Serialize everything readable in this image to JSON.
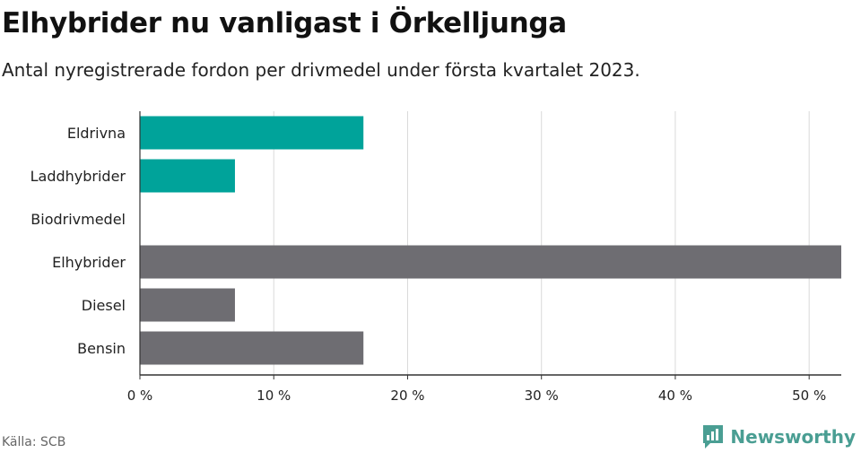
{
  "title": "Elhybrider nu vanligast i Örkelljunga",
  "subtitle": "Antal nyregistrerade fordon per drivmedel under första kvartalet 2023.",
  "source": "Källa: SCB",
  "brand": {
    "name": "Newsworthy",
    "icon": "bar-chart-logo-icon",
    "color": "#4a9e93"
  },
  "colors": {
    "highlight": "#00a39a",
    "default": "#6e6d72",
    "grid": "#d9d9d9",
    "axis": "#333333"
  },
  "chart_data": {
    "type": "bar",
    "orientation": "horizontal",
    "categories": [
      "Eldrivna",
      "Laddhybrider",
      "Biodrivmedel",
      "Elhybrider",
      "Diesel",
      "Bensin"
    ],
    "values": [
      16.7,
      7.1,
      0,
      52.4,
      7.1,
      16.7
    ],
    "highlight": [
      true,
      true,
      false,
      false,
      false,
      false
    ],
    "xlim": [
      0,
      52.4
    ],
    "xticks": [
      0,
      10,
      20,
      30,
      40,
      50
    ],
    "xtick_labels": [
      "0 %",
      "10 %",
      "20 %",
      "30 %",
      "40 %",
      "50 %"
    ],
    "xlabel": "",
    "ylabel": "",
    "grid": true,
    "legend": "none"
  }
}
